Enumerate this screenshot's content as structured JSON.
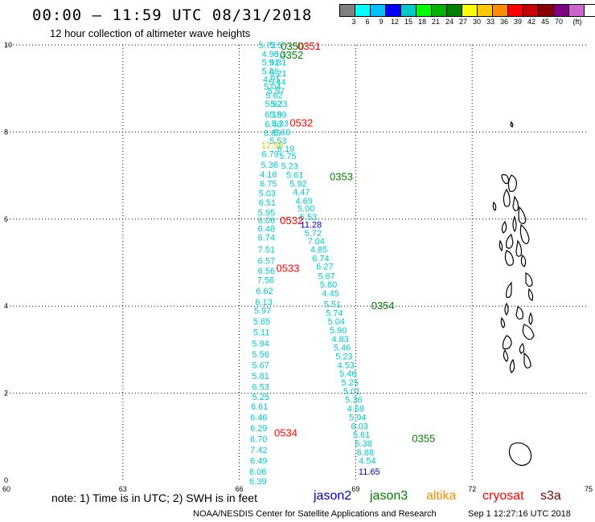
{
  "header": {
    "title": "00:00 – 11:59 UTC 08/31/2018",
    "subtitle": "12 hour collection of altimeter wave heights"
  },
  "legend": {
    "colors": [
      "#808080",
      "#00ffff",
      "#00bfff",
      "#0000ff",
      "#00c8c8",
      "#00ff00",
      "#00b400",
      "#008000",
      "#ffff00",
      "#ffc800",
      "#ff8c00",
      "#ff0000",
      "#c80000",
      "#8b0000",
      "#800080",
      "#cc66cc",
      "#ffffff",
      "#000000"
    ],
    "labels": [
      "3",
      "6",
      "9",
      "12",
      "15",
      "18",
      "21",
      "24",
      "27",
      "30",
      "33",
      "36",
      "39",
      "42",
      "45",
      "70",
      "(ft)"
    ]
  },
  "map": {
    "x_ticks": [
      "60",
      "63",
      "66",
      "69",
      "72",
      "75"
    ],
    "y_ticks": [
      "0",
      "2",
      "4",
      "6",
      "8",
      "10"
    ],
    "track_labels": [
      {
        "text": "0350",
        "lon": 67.07,
        "lat": 9.98,
        "color": "#008000"
      },
      {
        "text": "0351",
        "lon": 67.5,
        "lat": 9.98,
        "color": "#ff0000"
      },
      {
        "text": "0352",
        "lon": 67.05,
        "lat": 9.78,
        "color": "#008000"
      },
      {
        "text": "0532",
        "lon": 67.3,
        "lat": 8.22,
        "color": "#ff0000"
      },
      {
        "text": "0353",
        "lon": 68.33,
        "lat": 6.98,
        "color": "#008000"
      },
      {
        "text": "0532",
        "lon": 67.05,
        "lat": 5.98,
        "color": "#ff0000"
      },
      {
        "text": "0533",
        "lon": 66.95,
        "lat": 4.88,
        "color": "#ff0000"
      },
      {
        "text": "0354",
        "lon": 69.4,
        "lat": 4.02,
        "color": "#008000"
      },
      {
        "text": "0534",
        "lon": 66.9,
        "lat": 1.1,
        "color": "#ff0000"
      },
      {
        "text": "0355",
        "lon": 70.45,
        "lat": 0.97,
        "color": "#008000"
      }
    ],
    "western_track": {
      "color": "#00cccc",
      "points": [
        {
          "lon": 66.72,
          "lat": 10.0,
          "v": "5.72"
        },
        {
          "lon": 66.95,
          "lat": 10.0,
          "v": "5.5"
        },
        {
          "lon": 66.8,
          "lat": 9.8,
          "v": "4.93"
        },
        {
          "lon": 67.05,
          "lat": 9.8,
          "v": "6.1"
        },
        {
          "lon": 66.8,
          "lat": 9.6,
          "v": "5.91"
        },
        {
          "lon": 67.0,
          "lat": 9.6,
          "v": "5.81"
        },
        {
          "lon": 66.8,
          "lat": 9.4,
          "v": "5.86"
        },
        {
          "lon": 67.0,
          "lat": 9.35,
          "v": "5.21"
        },
        {
          "lon": 66.83,
          "lat": 9.22,
          "v": "4.91"
        },
        {
          "lon": 66.98,
          "lat": 9.15,
          "v": "5.44"
        },
        {
          "lon": 66.85,
          "lat": 9.05,
          "v": "5.04"
        },
        {
          "lon": 66.95,
          "lat": 8.95,
          "v": "5.57"
        },
        {
          "lon": 66.9,
          "lat": 8.85,
          "v": "5.62"
        },
        {
          "lon": 66.88,
          "lat": 8.65,
          "v": "5.92"
        },
        {
          "lon": 67.02,
          "lat": 8.65,
          "v": "5.23"
        },
        {
          "lon": 66.88,
          "lat": 8.4,
          "v": "6.15"
        },
        {
          "lon": 67.0,
          "lat": 8.4,
          "v": "5.89"
        },
        {
          "lon": 66.88,
          "lat": 8.18,
          "v": "6.40"
        },
        {
          "lon": 67.05,
          "lat": 8.2,
          "v": "5.33"
        },
        {
          "lon": 66.85,
          "lat": 7.98,
          "v": "6.85"
        },
        {
          "lon": 67.1,
          "lat": 8.0,
          "v": "5.66"
        },
        {
          "lon": 67.0,
          "lat": 7.8,
          "v": "5.53"
        },
        {
          "lon": 66.85,
          "lat": 7.7,
          "v": "12.55",
          "color": "#cccc00"
        },
        {
          "lon": 67.2,
          "lat": 7.62,
          "v": "6.19"
        },
        {
          "lon": 66.8,
          "lat": 7.5,
          "v": "6.79"
        },
        {
          "lon": 67.25,
          "lat": 7.45,
          "v": "5.75"
        },
        {
          "lon": 66.78,
          "lat": 7.25,
          "v": "5.36"
        },
        {
          "lon": 67.3,
          "lat": 7.22,
          "v": "5.23"
        },
        {
          "lon": 66.75,
          "lat": 7.03,
          "v": "4.16"
        },
        {
          "lon": 67.43,
          "lat": 7.02,
          "v": "5.61"
        },
        {
          "lon": 66.75,
          "lat": 6.82,
          "v": "6.75"
        },
        {
          "lon": 67.52,
          "lat": 6.82,
          "v": "5.92"
        },
        {
          "lon": 66.72,
          "lat": 6.6,
          "v": "5.03"
        },
        {
          "lon": 67.6,
          "lat": 6.62,
          "v": "4.47"
        },
        {
          "lon": 67.67,
          "lat": 6.42,
          "v": "4.69"
        },
        {
          "lon": 66.72,
          "lat": 6.38,
          "v": "6.51"
        },
        {
          "lon": 67.72,
          "lat": 6.25,
          "v": "5.00"
        },
        {
          "lon": 66.7,
          "lat": 6.15,
          "v": "5.95"
        },
        {
          "lon": 67.78,
          "lat": 6.05,
          "v": "5.53"
        },
        {
          "lon": 66.7,
          "lat": 5.98,
          "v": "6.06"
        },
        {
          "lon": 67.85,
          "lat": 5.88,
          "v": "11.28",
          "color": "#0000cc"
        },
        {
          "lon": 66.7,
          "lat": 5.78,
          "v": "6.48"
        },
        {
          "lon": 67.9,
          "lat": 5.68,
          "v": "5.72"
        },
        {
          "lon": 66.7,
          "lat": 5.58,
          "v": "6.74"
        },
        {
          "lon": 67.98,
          "lat": 5.5,
          "v": "7.04"
        },
        {
          "lon": 66.7,
          "lat": 5.3,
          "v": "7.51"
        },
        {
          "lon": 68.05,
          "lat": 5.3,
          "v": "4.85"
        },
        {
          "lon": 66.7,
          "lat": 5.05,
          "v": "6.57"
        },
        {
          "lon": 68.1,
          "lat": 5.1,
          "v": "6.74"
        },
        {
          "lon": 66.7,
          "lat": 4.82,
          "v": "6.56"
        },
        {
          "lon": 68.2,
          "lat": 4.92,
          "v": "6.27"
        },
        {
          "lon": 66.68,
          "lat": 4.6,
          "v": "7.56"
        },
        {
          "lon": 68.25,
          "lat": 4.7,
          "v": "5.67"
        },
        {
          "lon": 66.65,
          "lat": 4.35,
          "v": "6.62"
        },
        {
          "lon": 68.3,
          "lat": 4.5,
          "v": "5.80"
        },
        {
          "lon": 68.35,
          "lat": 4.3,
          "v": "4.45"
        },
        {
          "lon": 66.63,
          "lat": 4.1,
          "v": "6.13"
        },
        {
          "lon": 68.4,
          "lat": 4.05,
          "v": "5.51"
        },
        {
          "lon": 66.6,
          "lat": 3.9,
          "v": "5.97"
        },
        {
          "lon": 68.45,
          "lat": 3.85,
          "v": "5.74"
        },
        {
          "lon": 66.58,
          "lat": 3.65,
          "v": "5.65"
        },
        {
          "lon": 68.5,
          "lat": 3.65,
          "v": "5.04"
        },
        {
          "lon": 66.57,
          "lat": 3.4,
          "v": "5.11"
        },
        {
          "lon": 68.55,
          "lat": 3.45,
          "v": "5.90"
        },
        {
          "lon": 66.55,
          "lat": 3.15,
          "v": "5.94"
        },
        {
          "lon": 68.6,
          "lat": 3.25,
          "v": "4.83"
        },
        {
          "lon": 66.55,
          "lat": 2.9,
          "v": "5.56"
        },
        {
          "lon": 68.65,
          "lat": 3.05,
          "v": "5.46"
        },
        {
          "lon": 66.55,
          "lat": 2.65,
          "v": "5.67"
        },
        {
          "lon": 68.7,
          "lat": 2.85,
          "v": "5.23"
        },
        {
          "lon": 68.75,
          "lat": 2.65,
          "v": "4.53"
        },
        {
          "lon": 66.55,
          "lat": 2.4,
          "v": "5.81"
        },
        {
          "lon": 68.8,
          "lat": 2.45,
          "v": "5.46"
        },
        {
          "lon": 66.55,
          "lat": 2.15,
          "v": "6.53"
        },
        {
          "lon": 68.85,
          "lat": 2.25,
          "v": "5.25"
        },
        {
          "lon": 66.55,
          "lat": 1.92,
          "v": "5.25"
        },
        {
          "lon": 68.9,
          "lat": 2.05,
          "v": "5.01"
        },
        {
          "lon": 66.52,
          "lat": 1.7,
          "v": "6.61"
        },
        {
          "lon": 68.95,
          "lat": 1.85,
          "v": "5.36"
        },
        {
          "lon": 66.5,
          "lat": 1.45,
          "v": "6.46"
        },
        {
          "lon": 69.0,
          "lat": 1.65,
          "v": "4.68"
        },
        {
          "lon": 66.5,
          "lat": 1.2,
          "v": "6.29"
        },
        {
          "lon": 69.05,
          "lat": 1.45,
          "v": "5.94"
        },
        {
          "lon": 69.1,
          "lat": 1.25,
          "v": "6.03"
        },
        {
          "lon": 66.5,
          "lat": 0.95,
          "v": "6.70"
        },
        {
          "lon": 69.15,
          "lat": 1.05,
          "v": "5.61"
        },
        {
          "lon": 66.5,
          "lat": 0.7,
          "v": "7.42"
        },
        {
          "lon": 69.2,
          "lat": 0.85,
          "v": "5.38"
        },
        {
          "lon": 66.5,
          "lat": 0.45,
          "v": "6.49"
        },
        {
          "lon": 69.25,
          "lat": 0.65,
          "v": "6.88"
        },
        {
          "lon": 66.48,
          "lat": 0.2,
          "v": "6.06"
        },
        {
          "lon": 69.3,
          "lat": 0.45,
          "v": "4.54"
        },
        {
          "lon": 66.48,
          "lat": -0.02,
          "v": "6.39"
        },
        {
          "lon": 69.35,
          "lat": 0.2,
          "v": "11.65",
          "color": "#0000cc"
        }
      ]
    }
  },
  "footer": {
    "note": "note: 1) Time is in UTC; 2) SWH is in feet",
    "satellites": [
      {
        "name": "jason2",
        "color": "#0000cc"
      },
      {
        "name": "jason3",
        "color": "#008000"
      },
      {
        "name": "altika",
        "color": "#ff8c00"
      },
      {
        "name": "cryosat",
        "color": "#ff0000"
      },
      {
        "name": "s3a",
        "color": "#800000"
      }
    ],
    "credit": "NOAA/NESDIS Center for Satellite Applications and Research",
    "timestamp": "Sep  1 12:27:16 UTC 2018"
  }
}
